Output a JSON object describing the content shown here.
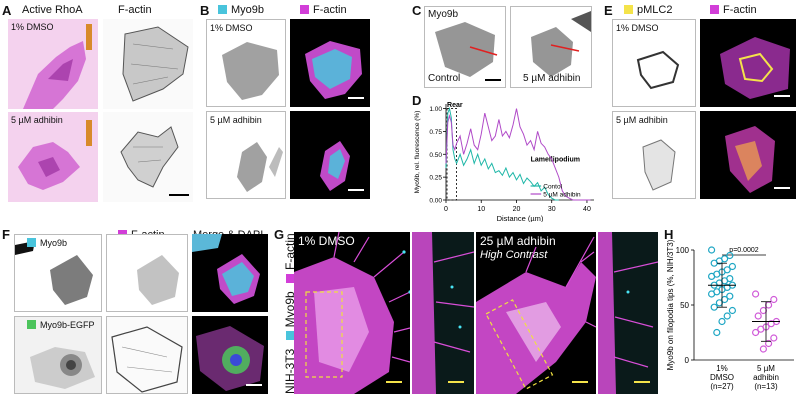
{
  "panels": {
    "A": {
      "label": "A",
      "titles": [
        "Active RhoA",
        "F-actin"
      ],
      "captions": [
        "1% DMSO",
        "5 µM adhibin"
      ]
    },
    "B": {
      "label": "B",
      "titles": [
        "Myo9b",
        "F-actin"
      ],
      "captions": [
        "1% DMSO",
        "5 µM adhibin"
      ]
    },
    "C": {
      "label": "C",
      "captions": [
        "Myo9b",
        "Control",
        "5 µM adhibin"
      ]
    },
    "D": {
      "label": "D"
    },
    "E": {
      "label": "E",
      "titles": [
        "pMLC2",
        "F-actin"
      ],
      "captions": [
        "1% DMSO",
        "5 µM adhibin"
      ]
    },
    "F": {
      "label": "F",
      "titles": [
        "F-actin",
        "Merge & DAPI"
      ],
      "captions": [
        "Myo9b",
        "Myo9b-EGFP"
      ]
    },
    "G": {
      "label": "G",
      "titles": [
        "1% DMSO",
        "25 µM adhibin"
      ],
      "high_contrast": "High Contrast",
      "side_labels": [
        "NIH-3T3",
        "Myo9b",
        "F-actin"
      ]
    },
    "H": {
      "label": "H"
    }
  },
  "colors": {
    "cyan": "#49c4dc",
    "magenta": "#d23ed8",
    "yellow": "#f4e34a",
    "green": "#4cc45c"
  },
  "chart_data": [
    {
      "panel": "D",
      "type": "line",
      "xlabel": "Distance (µm)",
      "ylabel": "Myo9b, rel. fluorescence (%)",
      "xlim": [
        0,
        42
      ],
      "ylim": [
        0,
        1.05
      ],
      "xticks": [
        0,
        10,
        20,
        30,
        40
      ],
      "yticks": [
        0.0,
        0.25,
        0.5,
        0.75,
        1.0
      ],
      "ytick_labels": [
        "0.00",
        "0.25",
        "0.50",
        "0.75",
        "1.00"
      ],
      "annotations": [
        "Rear",
        "Lamellipodium"
      ],
      "legend_position": "bottom-right",
      "series": [
        {
          "name": "Contol",
          "color": "#1fb7a8",
          "x": [
            0,
            0.5,
            1,
            1.5,
            2,
            2.5,
            3,
            4,
            5,
            6,
            7,
            8,
            9,
            10,
            11,
            12,
            13,
            14,
            15,
            16,
            17,
            18,
            19,
            20,
            21,
            22,
            23,
            24,
            25,
            26,
            27,
            28,
            29,
            30,
            31,
            32
          ],
          "y": [
            0.35,
            0.95,
            1.0,
            0.9,
            0.55,
            0.45,
            0.4,
            0.5,
            0.38,
            0.45,
            0.55,
            0.4,
            0.5,
            0.38,
            0.45,
            0.34,
            0.4,
            0.3,
            0.32,
            0.27,
            0.35,
            0.25,
            0.3,
            0.22,
            0.28,
            0.18,
            0.24,
            0.2,
            0.15,
            0.19,
            0.1,
            0.14,
            0.06,
            0.02,
            0.0,
            0.0
          ]
        },
        {
          "name": "5 µM adhibin",
          "color": "#b04ac8",
          "x": [
            0,
            0.5,
            1,
            1.5,
            2,
            2.5,
            3,
            4,
            5,
            6,
            7,
            8,
            9,
            10,
            11,
            12,
            13,
            14,
            15,
            16,
            17,
            18,
            19,
            20,
            21,
            22,
            23,
            24,
            25,
            26,
            27,
            28,
            29,
            30,
            31,
            32,
            33,
            34,
            35,
            36,
            37,
            38,
            39,
            40,
            41
          ],
          "y": [
            0.4,
            0.85,
            0.92,
            0.85,
            0.6,
            0.55,
            0.62,
            0.7,
            0.5,
            0.62,
            0.78,
            0.6,
            0.55,
            0.72,
            0.95,
            0.8,
            0.65,
            0.7,
            0.88,
            0.7,
            0.75,
            0.68,
            0.82,
            1.0,
            0.8,
            0.72,
            0.6,
            0.65,
            0.55,
            0.75,
            0.62,
            0.58,
            0.5,
            0.45,
            0.35,
            0.25,
            0.1,
            0.04,
            0.02,
            0.0,
            0.0,
            0.0,
            0.0,
            0.0,
            0.0
          ]
        }
      ]
    },
    {
      "panel": "H",
      "type": "scatter",
      "ylabel": "Myo9b on filopodia tips (%, NIH/3T3)",
      "ylim": [
        0,
        100
      ],
      "yticks": [
        0,
        50,
        100
      ],
      "categories": [
        "1% DMSO (n=27)",
        "5 µM adhibin (n=13)"
      ],
      "category_lines": [
        [
          "1%",
          "DMSO",
          "(n=27)"
        ],
        [
          "5 µM",
          "adhibin",
          "(n=13)"
        ]
      ],
      "significance": "p=0.0002",
      "series": [
        {
          "name": "1% DMSO",
          "color": "#1ea6c4",
          "mean": 68,
          "sd": 20,
          "values": [
            100,
            95,
            92,
            90,
            88,
            85,
            82,
            80,
            78,
            76,
            74,
            72,
            70,
            68,
            68,
            66,
            64,
            62,
            60,
            58,
            55,
            52,
            48,
            45,
            40,
            35,
            25
          ]
        },
        {
          "name": "5 µM adhibin",
          "color": "#d05ad8",
          "mean": 35,
          "sd": 18,
          "values": [
            60,
            55,
            50,
            45,
            40,
            35,
            33,
            30,
            28,
            25,
            20,
            15,
            10
          ]
        }
      ]
    }
  ]
}
